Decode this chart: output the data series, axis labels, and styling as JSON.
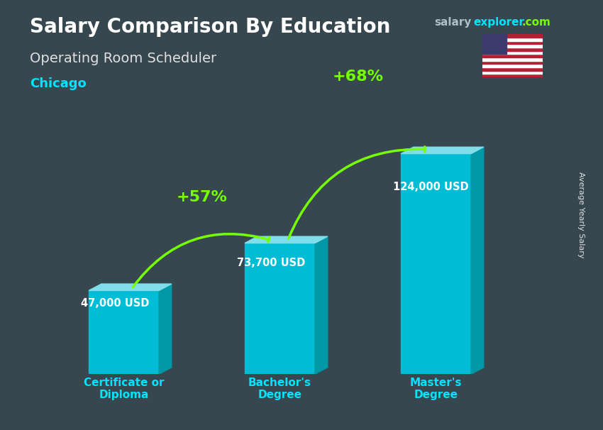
{
  "title_main": "Salary Comparison By Education",
  "subtitle": "Operating Room Scheduler",
  "location": "Chicago",
  "ylabel_rotated": "Average Yearly Salary",
  "categories": [
    "Certificate or\nDiploma",
    "Bachelor's\nDegree",
    "Master's\nDegree"
  ],
  "values": [
    47000,
    73700,
    124000
  ],
  "value_labels": [
    "47,000 USD",
    "73,700 USD",
    "124,000 USD"
  ],
  "pct_labels": [
    "+57%",
    "+68%"
  ],
  "bar_color_face": "#00bcd4",
  "bar_color_top": "#80deea",
  "bar_color_side": "#0097a7",
  "bar_width": 0.45,
  "background_color": "#37474f",
  "title_color": "#ffffff",
  "subtitle_color": "#e0e0e0",
  "location_color": "#00e5ff",
  "value_label_color": "#ffffff",
  "pct_color": "#76ff03",
  "arrow_color": "#76ff03",
  "website_salary_color": "#b0bec5",
  "website_explorer_color": "#00e5ff",
  "website_dot_com_color": "#76ff03",
  "xticklabel_color": "#00e5ff",
  "ylim_max": 150000,
  "bar_positions": [
    1,
    2,
    3
  ]
}
